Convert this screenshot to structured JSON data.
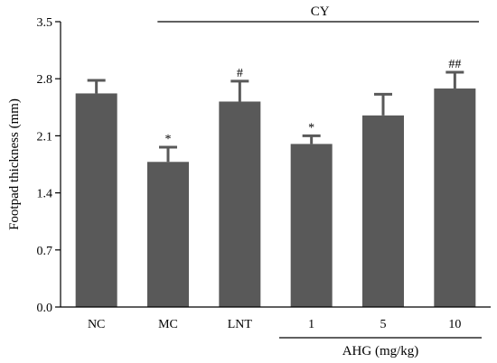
{
  "chart_data": {
    "type": "bar",
    "categories": [
      "NC",
      "MC",
      "LNT",
      "1",
      "5",
      "10"
    ],
    "values": [
      2.62,
      1.78,
      2.52,
      2.0,
      2.35,
      2.68
    ],
    "errors": [
      0.16,
      0.18,
      0.25,
      0.1,
      0.26,
      0.2
    ],
    "annotations": [
      "",
      "*",
      "#",
      "*",
      "",
      "##"
    ],
    "ylabel": "Footpad thickness (mm)",
    "xlabel": "",
    "ylim": [
      0,
      3.5
    ],
    "yticks": [
      "0.0",
      "0.7",
      "1.4",
      "2.1",
      "2.8",
      "3.5"
    ],
    "bar_color": "#595959",
    "grid": false,
    "group_labels": {
      "top": "CY",
      "bottom": "AHG (mg/kg)"
    }
  }
}
